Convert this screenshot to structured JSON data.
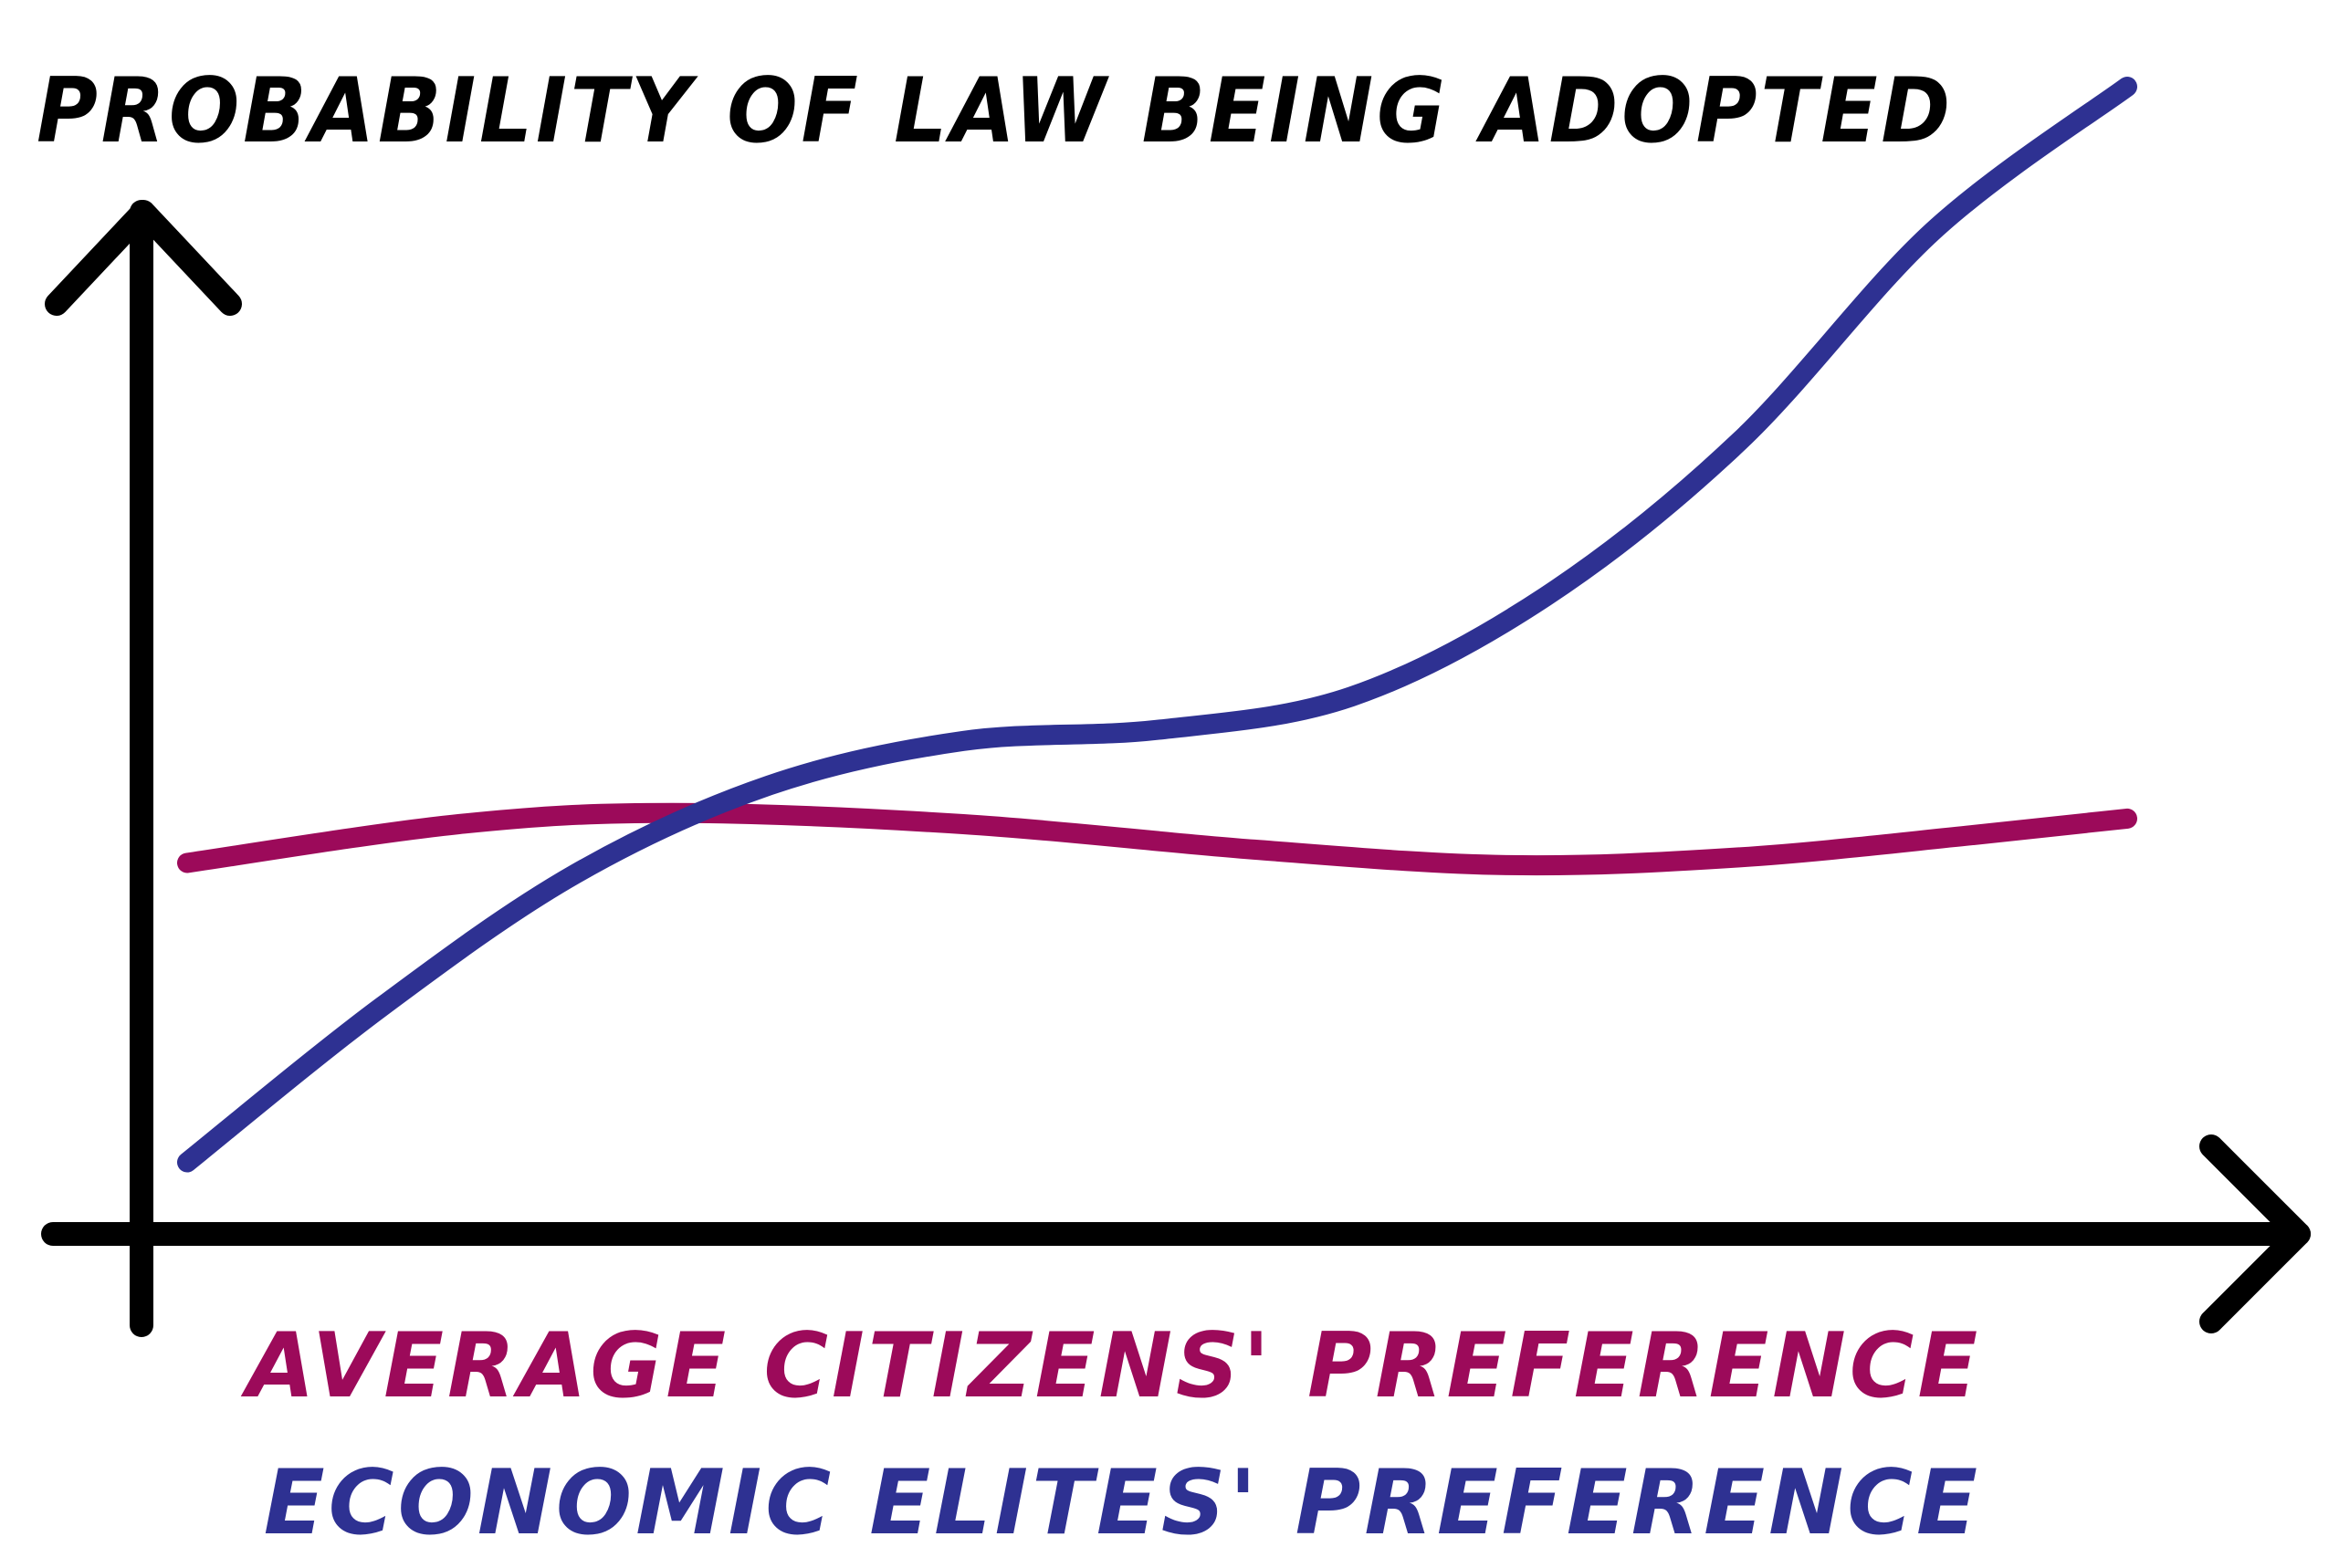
{
  "chart_data": {
    "type": "line",
    "title": "PROBABILITY OF LAW BEING ADOPTED",
    "ylabel": "PROBABILITY OF LAW BEING ADOPTED",
    "xlabel": "",
    "x_labels": [
      {
        "text": "AVERAGE CITIZENS' PREFERENCE",
        "color": "#9c0a5a"
      },
      {
        "text": "ECONOMIC ELITES' PREFERENCE",
        "color": "#2e3192"
      }
    ],
    "xlim": [
      0,
      1
    ],
    "ylim": [
      0,
      1
    ],
    "grid": false,
    "series": [
      {
        "name": "AVERAGE CITIZENS' PREFERENCE",
        "color": "#9c0a5a",
        "x": [
          0.0,
          0.14,
          0.25,
          0.4,
          0.55,
          0.68,
          0.8,
          0.92,
          1.0
        ],
        "y": [
          0.3,
          0.335,
          0.345,
          0.335,
          0.312,
          0.298,
          0.305,
          0.325,
          0.34
        ]
      },
      {
        "name": "ECONOMIC ELITES' PREFERENCE",
        "color": "#2e3192",
        "x": [
          0.0,
          0.1,
          0.2,
          0.3,
          0.4,
          0.5,
          0.6,
          0.7,
          0.8,
          0.9,
          1.0
        ],
        "y": [
          0.03,
          0.17,
          0.29,
          0.37,
          0.41,
          0.42,
          0.45,
          0.54,
          0.68,
          0.87,
          1.0
        ]
      }
    ]
  }
}
